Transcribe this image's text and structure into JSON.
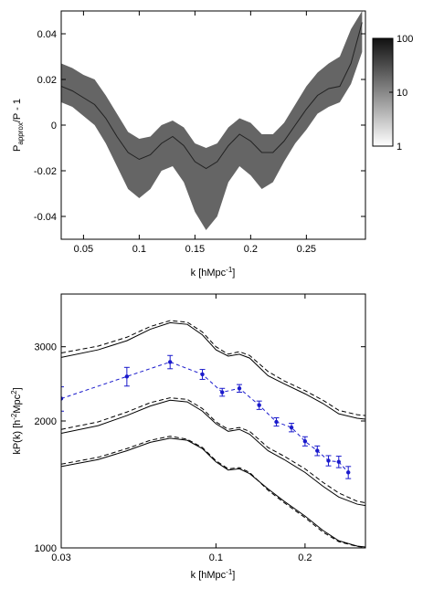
{
  "chart_data": [
    {
      "type": "band-line",
      "ylabel": [
        "P",
        "approx",
        "/P - 1"
      ],
      "xlabel": [
        "k [hMpc",
        "-1",
        "]"
      ],
      "xlim": [
        0.03,
        0.303
      ],
      "xticks": [
        0.05,
        0.1,
        0.15,
        0.2,
        0.25
      ],
      "ylim": [
        -0.05,
        0.05
      ],
      "yticks": [
        -0.04,
        -0.02,
        0,
        0.02,
        0.04
      ],
      "x": [
        0.03,
        0.04,
        0.05,
        0.06,
        0.07,
        0.08,
        0.09,
        0.1,
        0.11,
        0.12,
        0.13,
        0.14,
        0.15,
        0.16,
        0.17,
        0.18,
        0.19,
        0.2,
        0.21,
        0.22,
        0.23,
        0.24,
        0.25,
        0.26,
        0.27,
        0.28,
        0.29,
        0.3
      ],
      "series": [
        {
          "color": "#222222",
          "values": [
            0.017,
            0.015,
            0.012,
            0.009,
            0.003,
            -0.005,
            -0.012,
            -0.015,
            -0.013,
            -0.008,
            -0.005,
            -0.009,
            -0.016,
            -0.019,
            -0.016,
            -0.009,
            -0.004,
            -0.007,
            -0.012,
            -0.012,
            -0.007,
            0.0,
            0.007,
            0.013,
            0.016,
            0.017,
            0.027,
            0.045
          ]
        }
      ],
      "band": {
        "color": "#4a4a4a",
        "upper": [
          0.027,
          0.025,
          0.022,
          0.02,
          0.013,
          0.005,
          -0.003,
          -0.006,
          -0.005,
          0.0,
          0.002,
          -0.001,
          -0.008,
          -0.01,
          -0.008,
          -0.001,
          0.003,
          0.001,
          -0.004,
          -0.004,
          0.001,
          0.009,
          0.017,
          0.023,
          0.027,
          0.03,
          0.042,
          0.05
        ],
        "lower": [
          0.01,
          0.008,
          0.004,
          0.0,
          -0.008,
          -0.018,
          -0.028,
          -0.032,
          -0.028,
          -0.02,
          -0.018,
          -0.025,
          -0.038,
          -0.046,
          -0.04,
          -0.025,
          -0.018,
          -0.022,
          -0.028,
          -0.025,
          -0.016,
          -0.008,
          -0.002,
          0.005,
          0.008,
          0.01,
          0.018,
          0.032
        ]
      },
      "colorbar": {
        "lim": [
          1,
          100
        ],
        "ticks": [
          1,
          10,
          100
        ],
        "log": true
      }
    },
    {
      "type": "line",
      "ylabel": [
        "kP(k) [h",
        "-2",
        "Mpc",
        "2",
        "]"
      ],
      "xlabel": [
        "k [hMpc",
        "-1",
        "]"
      ],
      "xlog": true,
      "ylog": true,
      "xlim": [
        0.03,
        0.32
      ],
      "xticks": [
        0.03,
        0.1,
        0.2
      ],
      "ylim": [
        1000,
        4000
      ],
      "yticks": [
        1000,
        2000,
        3000
      ],
      "x": [
        0.03,
        0.04,
        0.05,
        0.06,
        0.07,
        0.08,
        0.09,
        0.1,
        0.11,
        0.12,
        0.13,
        0.15,
        0.17,
        0.2,
        0.23,
        0.26,
        0.3,
        0.32
      ],
      "series": [
        {
          "color": "#000000",
          "dashed": false,
          "values": [
            2830,
            2950,
            3100,
            3300,
            3420,
            3390,
            3200,
            2950,
            2850,
            2880,
            2820,
            2560,
            2450,
            2320,
            2200,
            2080,
            2030,
            2020
          ]
        },
        {
          "color": "#000000",
          "dashed": true,
          "values": [
            2900,
            3010,
            3160,
            3350,
            3460,
            3430,
            3250,
            3000,
            2880,
            2920,
            2860,
            2620,
            2490,
            2360,
            2240,
            2120,
            2070,
            2060
          ]
        },
        {
          "color": "#000000",
          "dashed": false,
          "values": [
            1870,
            1950,
            2060,
            2170,
            2240,
            2220,
            2110,
            1970,
            1890,
            1910,
            1860,
            1700,
            1620,
            1510,
            1400,
            1320,
            1270,
            1260
          ]
        },
        {
          "color": "#000000",
          "dashed": true,
          "values": [
            1910,
            1990,
            2100,
            2210,
            2270,
            2250,
            2140,
            1990,
            1910,
            1930,
            1890,
            1730,
            1650,
            1540,
            1430,
            1350,
            1290,
            1280
          ]
        },
        {
          "color": "#000000",
          "dashed": false,
          "values": [
            1560,
            1620,
            1700,
            1780,
            1820,
            1800,
            1720,
            1600,
            1530,
            1540,
            1500,
            1380,
            1290,
            1190,
            1100,
            1040,
            1010,
            1005
          ]
        },
        {
          "color": "#000000",
          "dashed": true,
          "values": [
            1580,
            1640,
            1720,
            1800,
            1840,
            1810,
            1730,
            1610,
            1540,
            1550,
            1510,
            1370,
            1280,
            1180,
            1090,
            1035,
            1008,
            1003
          ]
        }
      ],
      "points": {
        "color": "#1a1acc",
        "x": [
          0.03,
          0.05,
          0.07,
          0.09,
          0.105,
          0.12,
          0.14,
          0.16,
          0.18,
          0.2,
          0.22,
          0.24,
          0.26,
          0.28
        ],
        "values": [
          2260,
          2550,
          2760,
          2580,
          2340,
          2390,
          2180,
          1990,
          1930,
          1790,
          1700,
          1610,
          1600,
          1510
        ],
        "errors": [
          150,
          130,
          100,
          70,
          50,
          50,
          50,
          45,
          45,
          45,
          45,
          45,
          50,
          50
        ]
      }
    }
  ]
}
